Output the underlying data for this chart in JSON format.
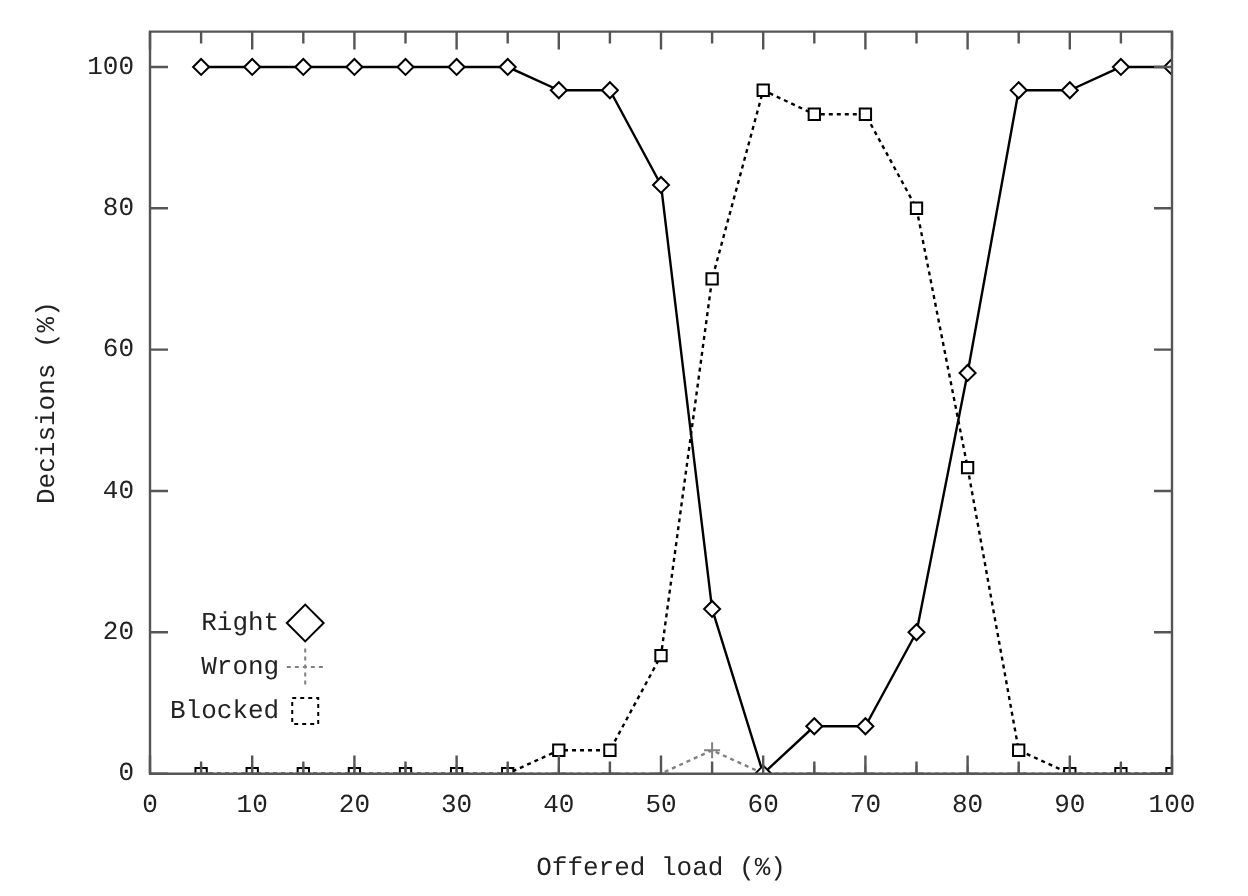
{
  "chart_data": {
    "type": "line",
    "xlabel": "Offered load (%)",
    "ylabel": "Decisions (%)",
    "x": [
      5,
      10,
      15,
      20,
      25,
      30,
      35,
      40,
      45,
      50,
      55,
      60,
      65,
      70,
      75,
      80,
      85,
      90,
      95,
      100
    ],
    "xlim": [
      0,
      100
    ],
    "ylim": [
      0,
      105
    ],
    "xticks": [
      0,
      {
        "value": 5,
        "label": null
      },
      10,
      {
        "value": 15,
        "label": null
      },
      20,
      {
        "value": 25,
        "label": null
      },
      30,
      {
        "value": 35,
        "label": null
      },
      40,
      {
        "value": 45,
        "label": null
      },
      50,
      {
        "value": 55,
        "label": null
      },
      60,
      {
        "value": 65,
        "label": null
      },
      70,
      {
        "value": 75,
        "label": null
      },
      80,
      {
        "value": 85,
        "label": null
      },
      90,
      {
        "value": 95,
        "label": null
      },
      100
    ],
    "yticks": [
      0,
      20,
      40,
      60,
      80,
      100
    ],
    "grid": false,
    "legend": "bottom left",
    "series": [
      {
        "name": "Right",
        "color": "#000000",
        "marker": "diamond",
        "line_style": "solid",
        "values": [
          100,
          100,
          100,
          100,
          100,
          100,
          100,
          96.7,
          96.7,
          83.3,
          23.3,
          0,
          6.7,
          6.7,
          20,
          56.7,
          96.7,
          96.7,
          100,
          100
        ]
      },
      {
        "name": "Wrong",
        "color": "#808080",
        "marker": "cross",
        "line_style": "dotted",
        "values": [
          0,
          0,
          0,
          0,
          0,
          0,
          0,
          0,
          0,
          0,
          3.3,
          0,
          0,
          0,
          0,
          0,
          0,
          0,
          0,
          0
        ]
      },
      {
        "name": "Blocked",
        "color": "#000000",
        "marker": "square",
        "line_style": "dotted",
        "values": [
          0,
          0,
          0,
          0,
          0,
          0,
          0,
          3.3,
          3.3,
          16.7,
          70,
          96.7,
          93.3,
          93.3,
          80,
          43.3,
          3.3,
          0,
          0,
          0
        ]
      }
    ]
  }
}
